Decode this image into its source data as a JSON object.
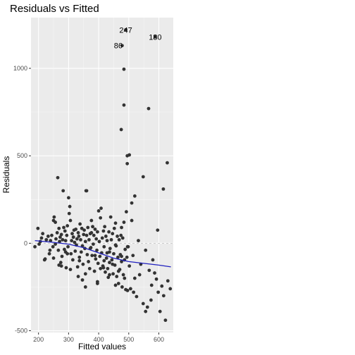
{
  "chart_data": {
    "type": "scatter",
    "title": "Residuals vs Fitted",
    "xlabel": "Fitted values",
    "ylabel": "Residuals",
    "xlim": [
      175,
      648
    ],
    "ylim": [
      -510,
      1290
    ],
    "xticks": [
      200,
      300,
      400,
      500,
      600
    ],
    "yticks": [
      -500,
      0,
      500,
      1000
    ],
    "grid": true,
    "zero_reference_line": 0,
    "colors": {
      "panel": "#ebebeb",
      "grid_major": "#ffffff",
      "point": "#333333",
      "smooth": "#1f1fbf",
      "text": "#000000",
      "tick_label": "#4d4d4d"
    },
    "annotations": [
      {
        "label": "247",
        "x": 490,
        "y": 1220
      },
      {
        "label": "86",
        "x": 465,
        "y": 1130
      },
      {
        "label": "180",
        "x": 588,
        "y": 1180
      }
    ],
    "smooth_line": {
      "x": [
        188,
        250,
        300,
        350,
        400,
        450,
        500,
        550,
        600,
        640
      ],
      "y": [
        15,
        5,
        -5,
        -25,
        -55,
        -85,
        -105,
        -115,
        -125,
        -135
      ]
    },
    "points": {
      "x": [
        490,
        478,
        588,
        484,
        484,
        566,
        475,
        502,
        495,
        495,
        628,
        548,
        615,
        520,
        360,
        510,
        492,
        188,
        198,
        206,
        210,
        214,
        220,
        226,
        232,
        236,
        240,
        244,
        248,
        250,
        252,
        256,
        258,
        262,
        264,
        266,
        268,
        270,
        272,
        274,
        276,
        278,
        280,
        282,
        284,
        286,
        288,
        290,
        292,
        294,
        296,
        298,
        300,
        302,
        304,
        306,
        308,
        310,
        312,
        314,
        316,
        318,
        320,
        322,
        324,
        326,
        328,
        330,
        332,
        334,
        336,
        338,
        340,
        342,
        344,
        346,
        348,
        350,
        352,
        354,
        356,
        358,
        360,
        362,
        364,
        366,
        368,
        370,
        372,
        374,
        376,
        378,
        380,
        382,
        384,
        386,
        388,
        390,
        392,
        394,
        396,
        398,
        400,
        402,
        404,
        406,
        408,
        410,
        412,
        414,
        416,
        418,
        420,
        422,
        424,
        426,
        428,
        430,
        432,
        434,
        436,
        438,
        440,
        442,
        444,
        446,
        448,
        450,
        452,
        454,
        456,
        458,
        460,
        462,
        464,
        466,
        468,
        470,
        472,
        474,
        476,
        478,
        480,
        482,
        484,
        486,
        488,
        490,
        494,
        498,
        502,
        506,
        510,
        514,
        520,
        526,
        532,
        540,
        548,
        556,
        562,
        568,
        574,
        580,
        586,
        592,
        598,
        604,
        610,
        616,
        622,
        630,
        638,
        250,
        268,
        290,
        306,
        332,
        346,
        356,
        372,
        388,
        396,
        406,
        418,
        428,
        436,
        446,
        456,
        466,
        476,
        486,
        496,
        202,
        222,
        238,
        256,
        276,
        296,
        316,
        336,
        356,
        376,
        396,
        416,
        436,
        456,
        476,
        496,
        516,
        536,
        556,
        576,
        596
      ],
      "y": [
        1220,
        1130,
        1180,
        995,
        790,
        770,
        650,
        505,
        500,
        455,
        460,
        380,
        310,
        270,
        300,
        230,
        180,
        -20,
        85,
        10,
        30,
        55,
        -95,
        20,
        40,
        -60,
        15,
        45,
        -20,
        130,
        150,
        -5,
        25,
        60,
        375,
        -40,
        85,
        10,
        35,
        -110,
        50,
        -75,
        20,
        300,
        90,
        -35,
        70,
        15,
        -140,
        45,
        100,
        -20,
        260,
        170,
        210,
        130,
        -60,
        15,
        55,
        -95,
        35,
        75,
        5,
        -45,
        80,
        -10,
        25,
        -135,
        60,
        40,
        -80,
        110,
        20,
        -50,
        85,
        -15,
        -120,
        50,
        75,
        -30,
        10,
        300,
        45,
        -65,
        90,
        -105,
        20,
        -145,
        55,
        -25,
        130,
        -70,
        95,
        -5,
        45,
        -160,
        80,
        -90,
        25,
        -40,
        65,
        -115,
        185,
        10,
        -75,
        145,
        200,
        -55,
        30,
        -130,
        70,
        -20,
        95,
        -165,
        40,
        -85,
        15,
        -145,
        -195,
        65,
        -110,
        -30,
        150,
        20,
        -95,
        55,
        -175,
        -60,
        85,
        -125,
        115,
        -15,
        -190,
        40,
        -80,
        -230,
        20,
        -150,
        -65,
        45,
        -105,
        -250,
        30,
        -180,
        120,
        -95,
        -35,
        -265,
        -80,
        -20,
        -130,
        -260,
        130,
        -70,
        -200,
        -305,
        15,
        -120,
        -345,
        -40,
        -365,
        -155,
        -325,
        -95,
        -170,
        -205,
        -280,
        -390,
        -245,
        -300,
        -440,
        -215,
        -260,
        -85,
        -125,
        -50,
        -150,
        -190,
        -210,
        -250,
        -30,
        -70,
        -230,
        -145,
        -100,
        -55,
        -180,
        -120,
        -10,
        -160,
        -75,
        -200,
        -270,
        -5,
        -90,
        -40,
        120,
        -130,
        -60,
        35,
        -100,
        -175,
        60,
        -220,
        -140,
        -50,
        -240,
        90,
        -20,
        -280,
        -180,
        -390,
        -240,
        75
      ]
    }
  }
}
